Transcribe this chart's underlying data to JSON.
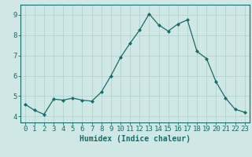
{
  "x": [
    0,
    1,
    2,
    3,
    4,
    5,
    6,
    7,
    8,
    9,
    10,
    11,
    12,
    13,
    14,
    15,
    16,
    17,
    18,
    19,
    20,
    21,
    22,
    23
  ],
  "y": [
    4.6,
    4.3,
    4.1,
    4.85,
    4.8,
    4.9,
    4.8,
    4.75,
    5.2,
    6.0,
    6.9,
    7.6,
    8.25,
    9.05,
    8.5,
    8.2,
    8.55,
    8.75,
    7.2,
    6.85,
    5.7,
    4.9,
    4.35,
    4.2
  ],
  "xlabel": "Humidex (Indice chaleur)",
  "yticks": [
    4,
    5,
    6,
    7,
    8,
    9
  ],
  "xticks": [
    0,
    1,
    2,
    3,
    4,
    5,
    6,
    7,
    8,
    9,
    10,
    11,
    12,
    13,
    14,
    15,
    16,
    17,
    18,
    19,
    20,
    21,
    22,
    23
  ],
  "ylim": [
    3.7,
    9.5
  ],
  "xlim": [
    -0.5,
    23.5
  ],
  "bg_color": "#cfe8e5",
  "line_color": "#1a6b6b",
  "marker_color": "#1a6b6b",
  "grid_color": "#afd4d0",
  "xlabel_fontsize": 7,
  "tick_fontsize": 6.5
}
